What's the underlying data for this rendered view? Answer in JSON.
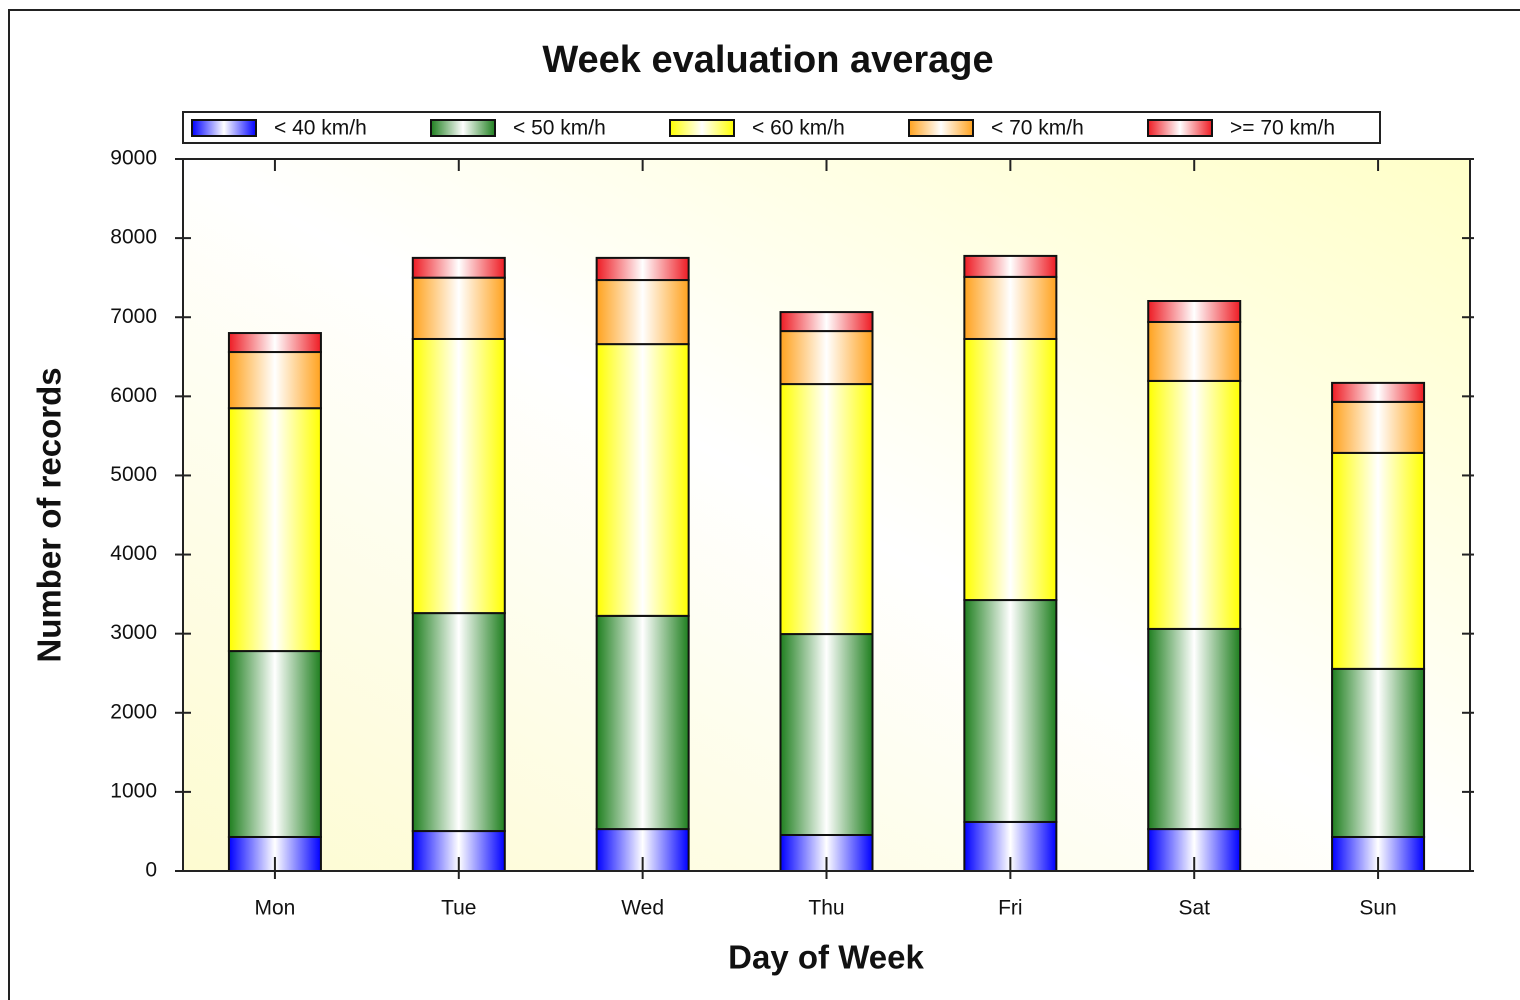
{
  "chart_data": {
    "type": "stacked_bar",
    "title": "Week evaluation average",
    "x_label": "Day of Week",
    "y_label": "Number of records",
    "categories": [
      "Mon",
      "Tue",
      "Wed",
      "Thu",
      "Fri",
      "Sat",
      "Sun"
    ],
    "series": [
      {
        "name": "< 40 km/h",
        "color": "#0000ff",
        "values": [
          430,
          505,
          530,
          455,
          620,
          530,
          430
        ]
      },
      {
        "name": "< 50 km/h",
        "color": "#1f7f1f",
        "values": [
          2350,
          2755,
          2695,
          2540,
          2805,
          2530,
          2125
        ]
      },
      {
        "name": "< 60 km/h",
        "color": "#ffff00",
        "values": [
          3070,
          3465,
          3435,
          3160,
          3300,
          3135,
          2730
        ]
      },
      {
        "name": "< 70 km/h",
        "color": "#ffa21e",
        "values": [
          710,
          775,
          810,
          670,
          785,
          745,
          645
        ]
      },
      {
        "name": ">= 70 km/h",
        "color": "#ee1c24",
        "values": [
          240,
          250,
          280,
          240,
          265,
          265,
          240
        ]
      }
    ],
    "ylim": [
      0,
      9000
    ],
    "yticks": [
      0,
      1000,
      2000,
      3000,
      4000,
      5000,
      6000,
      7000,
      8000,
      9000
    ],
    "legend": "top"
  }
}
